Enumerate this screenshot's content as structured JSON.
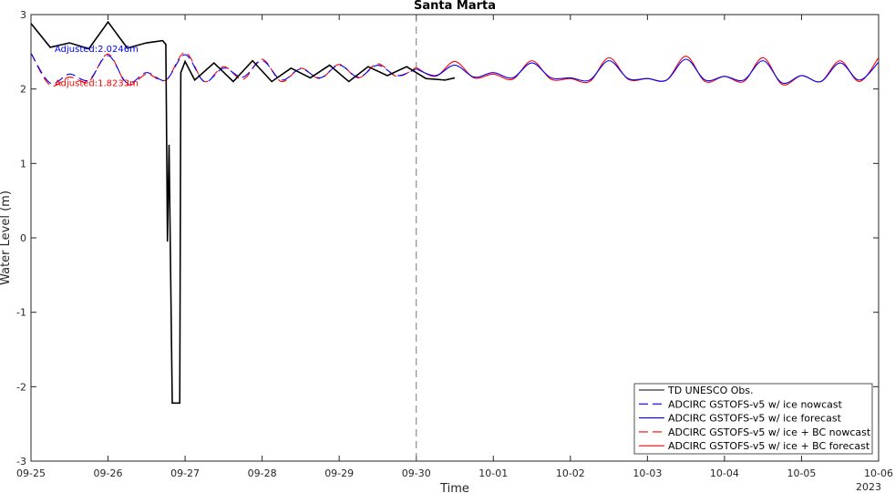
{
  "chart_data": {
    "type": "line",
    "title": "Santa Marta",
    "xlabel": "Time",
    "ylabel": "Water Level (m)",
    "year_label": "2023",
    "xlim": [
      "2023-09-25",
      "2023-10-06"
    ],
    "ylim": [
      -3,
      3
    ],
    "x_ticks": [
      "09-25",
      "09-26",
      "09-27",
      "09-28",
      "09-29",
      "09-30",
      "10-01",
      "10-02",
      "10-03",
      "10-04",
      "10-05",
      "10-06"
    ],
    "y_ticks": [
      3,
      2,
      1,
      0,
      -1,
      -2,
      -3
    ],
    "nowcast_end": "2023-09-30",
    "grid": false,
    "legend_position": "bottom-right",
    "annotations": [
      {
        "text": "Adjusted:2.0246m",
        "color": "#0000ff"
      },
      {
        "text": "Adjusted:1.8233m",
        "color": "#ff0000"
      }
    ],
    "series": [
      {
        "name": "TD UNESCO Obs.",
        "color": "#000000",
        "dash": "solid",
        "x": [
          "2023-09-25 00:00",
          "2023-09-25 06:00",
          "2023-09-25 12:00",
          "2023-09-25 18:00",
          "2023-09-26 00:00",
          "2023-09-26 06:00",
          "2023-09-26 12:00",
          "2023-09-26 17:00",
          "2023-09-26 18:00",
          "2023-09-26 18:10",
          "2023-09-26 18:30",
          "2023-09-26 19:00",
          "2023-09-26 20:00",
          "2023-09-26 21:00",
          "2023-09-26 22:00",
          "2023-09-26 22:20",
          "2023-09-26 22:40",
          "2023-09-27 00:00",
          "2023-09-27 03:00",
          "2023-09-27 09:00",
          "2023-09-27 15:00",
          "2023-09-27 21:00",
          "2023-09-28 03:00",
          "2023-09-28 09:00",
          "2023-09-28 15:00",
          "2023-09-28 21:00",
          "2023-09-29 03:00",
          "2023-09-29 09:00",
          "2023-09-29 15:00",
          "2023-09-29 21:00",
          "2023-09-30 03:00",
          "2023-09-30 09:00",
          "2023-09-30 12:00"
        ],
        "values": [
          2.88,
          2.56,
          2.62,
          2.54,
          2.9,
          2.55,
          2.62,
          2.65,
          2.6,
          1.75,
          -0.05,
          1.25,
          -2.22,
          -2.22,
          -2.22,
          -2.22,
          2.22,
          2.37,
          2.12,
          2.35,
          2.1,
          2.38,
          2.1,
          2.28,
          2.15,
          2.32,
          2.1,
          2.3,
          2.18,
          2.3,
          2.14,
          2.12,
          2.15
        ]
      },
      {
        "name": "ADCIRC GSTOFS-v5 w/ ice nowcast",
        "color": "#0000ff",
        "dash": "dashed",
        "x": [
          "2023-09-25 00:00",
          "2023-09-25 06:00",
          "2023-09-25 12:00",
          "2023-09-25 18:00",
          "2023-09-26 00:00",
          "2023-09-26 06:00",
          "2023-09-26 12:00",
          "2023-09-26 18:00",
          "2023-09-27 00:00",
          "2023-09-27 06:00",
          "2023-09-27 12:00",
          "2023-09-27 18:00",
          "2023-09-28 00:00",
          "2023-09-28 06:00",
          "2023-09-28 12:00",
          "2023-09-28 18:00",
          "2023-09-29 00:00",
          "2023-09-29 06:00",
          "2023-09-29 12:00",
          "2023-09-29 18:00",
          "2023-09-30 00:00"
        ],
        "values": [
          2.48,
          2.08,
          2.2,
          2.12,
          2.45,
          2.08,
          2.22,
          2.12,
          2.46,
          2.1,
          2.28,
          2.16,
          2.38,
          2.12,
          2.27,
          2.15,
          2.32,
          2.16,
          2.32,
          2.18,
          2.27
        ]
      },
      {
        "name": "ADCIRC GSTOFS-v5 w/ ice forecast",
        "color": "#0000ff",
        "dash": "solid",
        "x": [
          "2023-09-30 00:00",
          "2023-09-30 06:00",
          "2023-09-30 12:00",
          "2023-09-30 18:00",
          "2023-10-01 00:00",
          "2023-10-01 06:00",
          "2023-10-01 12:00",
          "2023-10-01 18:00",
          "2023-10-02 00:00",
          "2023-10-02 06:00",
          "2023-10-02 12:00",
          "2023-10-02 18:00",
          "2023-10-03 00:00",
          "2023-10-03 06:00",
          "2023-10-03 12:00",
          "2023-10-03 18:00",
          "2023-10-04 00:00",
          "2023-10-04 06:00",
          "2023-10-04 12:00",
          "2023-10-04 18:00",
          "2023-10-05 00:00",
          "2023-10-05 06:00",
          "2023-10-05 12:00",
          "2023-10-05 18:00",
          "2023-10-06 00:00"
        ],
        "values": [
          2.27,
          2.18,
          2.32,
          2.16,
          2.22,
          2.15,
          2.35,
          2.15,
          2.15,
          2.12,
          2.38,
          2.14,
          2.14,
          2.12,
          2.4,
          2.12,
          2.17,
          2.12,
          2.38,
          2.08,
          2.18,
          2.1,
          2.35,
          2.12,
          2.36
        ]
      },
      {
        "name": "ADCIRC GSTOFS-v5 w/ ice + BC nowcast",
        "color": "#ff0000",
        "dash": "dashed",
        "x": [
          "2023-09-25 00:00",
          "2023-09-25 06:00",
          "2023-09-25 12:00",
          "2023-09-25 18:00",
          "2023-09-26 00:00",
          "2023-09-26 06:00",
          "2023-09-26 12:00",
          "2023-09-26 18:00",
          "2023-09-27 00:00",
          "2023-09-27 06:00",
          "2023-09-27 12:00",
          "2023-09-27 18:00",
          "2023-09-28 00:00",
          "2023-09-28 06:00",
          "2023-09-28 12:00",
          "2023-09-28 18:00",
          "2023-09-29 00:00",
          "2023-09-29 06:00",
          "2023-09-29 12:00",
          "2023-09-29 18:00",
          "2023-09-30 00:00"
        ],
        "values": [
          2.48,
          2.05,
          2.16,
          2.1,
          2.47,
          2.06,
          2.2,
          2.12,
          2.49,
          2.1,
          2.3,
          2.13,
          2.4,
          2.1,
          2.28,
          2.14,
          2.33,
          2.15,
          2.34,
          2.17,
          2.29
        ]
      },
      {
        "name": "ADCIRC GSTOFS-v5 w/ ice + BC forecast",
        "color": "#ff0000",
        "dash": "solid",
        "x": [
          "2023-09-30 00:00",
          "2023-09-30 06:00",
          "2023-09-30 12:00",
          "2023-09-30 18:00",
          "2023-10-01 00:00",
          "2023-10-01 06:00",
          "2023-10-01 12:00",
          "2023-10-01 18:00",
          "2023-10-02 00:00",
          "2023-10-02 06:00",
          "2023-10-02 12:00",
          "2023-10-02 18:00",
          "2023-10-03 00:00",
          "2023-10-03 06:00",
          "2023-10-03 12:00",
          "2023-10-03 18:00",
          "2023-10-04 00:00",
          "2023-10-04 06:00",
          "2023-10-04 12:00",
          "2023-10-04 18:00",
          "2023-10-05 00:00",
          "2023-10-05 06:00",
          "2023-10-05 12:00",
          "2023-10-05 18:00",
          "2023-10-06 00:00"
        ],
        "values": [
          2.29,
          2.17,
          2.37,
          2.15,
          2.2,
          2.13,
          2.38,
          2.13,
          2.14,
          2.1,
          2.42,
          2.13,
          2.14,
          2.12,
          2.44,
          2.1,
          2.17,
          2.1,
          2.42,
          2.06,
          2.18,
          2.1,
          2.38,
          2.1,
          2.42
        ]
      }
    ]
  }
}
